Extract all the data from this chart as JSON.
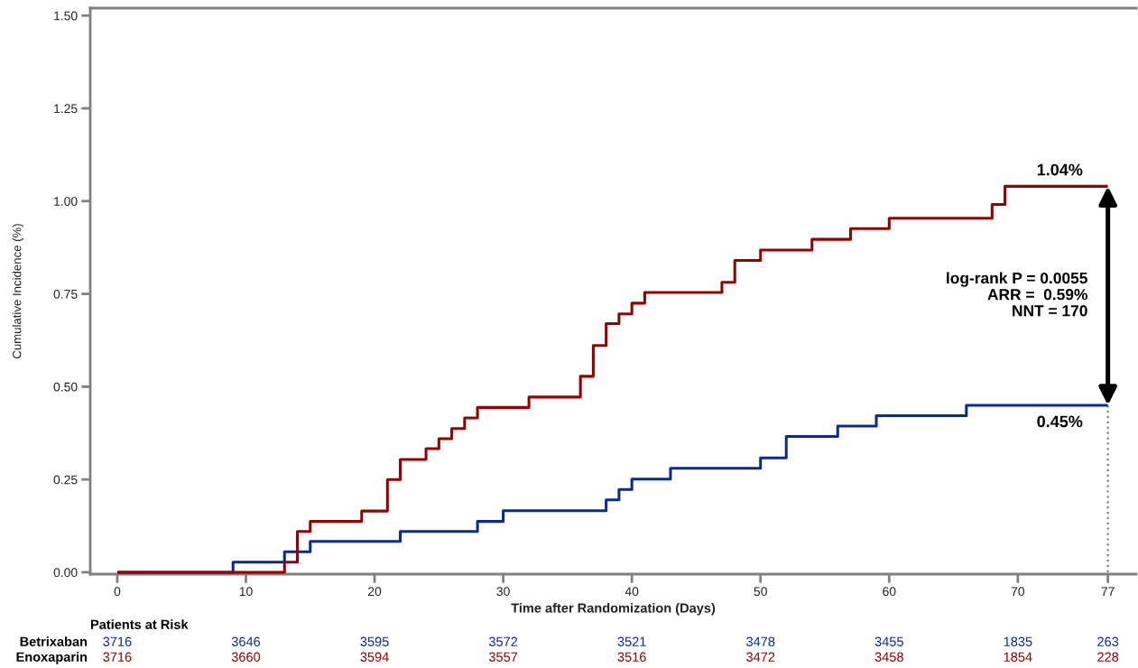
{
  "chart_data": {
    "type": "step",
    "xlabel": "Time after Randomization (Days)",
    "ylabel": "Cumulative Incidence (%)",
    "xlim": [
      -2.1,
      79.2
    ],
    "xticks": [
      0,
      10,
      20,
      30,
      40,
      50,
      60,
      70,
      77
    ],
    "ylim": [
      -0.005,
      1.52
    ],
    "yticks": [
      {
        "value": 0,
        "label": "0.00"
      },
      {
        "value": 0.25,
        "label": "0.25"
      },
      {
        "value": 0.5,
        "label": "0.50"
      },
      {
        "value": 0.75,
        "label": "0.75"
      },
      {
        "value": 1.0,
        "label": "1.00"
      },
      {
        "value": 1.25,
        "label": "1.25"
      },
      {
        "value": 1.5,
        "label": "1.50"
      }
    ],
    "grid": false,
    "marker": "none",
    "series": [
      {
        "color": "#0b2a94",
        "x": [
          0,
          9,
          13,
          15,
          22,
          28,
          30,
          38,
          39,
          40,
          43,
          50,
          52,
          56,
          59,
          66,
          77
        ],
        "values": [
          0,
          0.027,
          0.055,
          0.083,
          0.11,
          0.137,
          0.166,
          0.195,
          0.223,
          0.251,
          0.28,
          0.308,
          0.366,
          0.394,
          0.422,
          0.45,
          0.45
        ]
      },
      {
        "color": "#960000",
        "x": [
          0,
          13,
          14,
          15,
          19,
          21,
          22,
          24,
          25,
          26,
          27,
          28,
          32,
          36,
          37,
          38,
          39,
          40,
          41,
          47,
          48,
          50,
          54,
          57,
          60,
          68,
          69,
          77
        ],
        "values": [
          0,
          0.027,
          0.11,
          0.137,
          0.165,
          0.25,
          0.304,
          0.333,
          0.36,
          0.387,
          0.416,
          0.444,
          0.472,
          0.528,
          0.611,
          0.67,
          0.696,
          0.725,
          0.754,
          0.781,
          0.84,
          0.868,
          0.897,
          0.926,
          0.954,
          0.991,
          1.04,
          1.04
        ]
      },
      {
        "type": "line",
        "color": "#808080",
        "line_style": "dotted",
        "x": [
          77,
          77
        ],
        "values": [
          0,
          0.45
        ]
      }
    ],
    "annotations": [
      {
        "text": "1.04%",
        "x": 77,
        "y": 1.04
      },
      {
        "text": "0.45%",
        "x": 77,
        "y": 0.45
      },
      "log-rank P = 0.0055\nARR =  0.59%\nNNT = 170",
      "Patients at Risk",
      "Betrixaban",
      "3716",
      "3646",
      "3595",
      "3572",
      "3521",
      "3478",
      "3455",
      "1835",
      "263",
      "Enoxaparin",
      "3716",
      "3660",
      "3594",
      "3557",
      "3516",
      "3472",
      "3458",
      "1854",
      "228"
    ]
  }
}
